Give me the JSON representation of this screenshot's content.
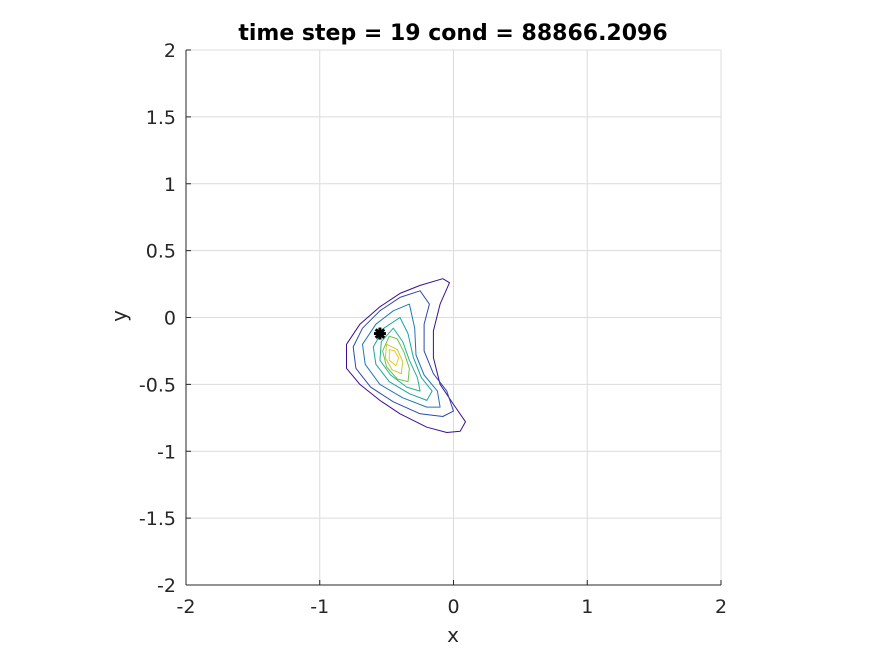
{
  "chart_data": {
    "type": "contour",
    "title": "time step = 19 cond = 88866.2096",
    "xlabel": "x",
    "ylabel": "y",
    "xlim": [
      -2,
      2
    ],
    "ylim": [
      -2,
      2
    ],
    "xticks": [
      -2,
      -1,
      0,
      1,
      2
    ],
    "yticks": [
      -2,
      -1.5,
      -1,
      -0.5,
      0,
      0.5,
      1,
      1.5,
      2
    ],
    "xtick_labels": [
      "-2",
      "-1",
      "0",
      "1",
      "2"
    ],
    "ytick_labels": [
      "-2",
      "-1.5",
      "-1",
      "-0.5",
      "0",
      "0.5",
      "1",
      "1.5",
      "2"
    ],
    "grid": true,
    "colormap": [
      "#3b0f8f",
      "#2c4aa8",
      "#1f77b4",
      "#1aa3a3",
      "#21b38f",
      "#6cc24a",
      "#c8c83a",
      "#f0c820"
    ],
    "contour_levels": [
      {
        "color": "#3b0f8f",
        "points": [
          [
            -0.08,
            0.29
          ],
          [
            -0.25,
            0.24
          ],
          [
            -0.4,
            0.18
          ],
          [
            -0.55,
            0.08
          ],
          [
            -0.7,
            -0.05
          ],
          [
            -0.8,
            -0.2
          ],
          [
            -0.8,
            -0.38
          ],
          [
            -0.7,
            -0.5
          ],
          [
            -0.55,
            -0.62
          ],
          [
            -0.4,
            -0.72
          ],
          [
            -0.2,
            -0.82
          ],
          [
            -0.05,
            -0.86
          ],
          [
            0.05,
            -0.85
          ],
          [
            0.09,
            -0.78
          ],
          [
            0.0,
            -0.65
          ],
          [
            -0.1,
            -0.5
          ],
          [
            -0.15,
            -0.3
          ],
          [
            -0.15,
            -0.1
          ],
          [
            -0.1,
            0.1
          ],
          [
            -0.03,
            0.26
          ]
        ]
      },
      {
        "color": "#2c4aa8",
        "points": [
          [
            -0.25,
            0.2
          ],
          [
            -0.4,
            0.15
          ],
          [
            -0.55,
            0.05
          ],
          [
            -0.68,
            -0.08
          ],
          [
            -0.75,
            -0.22
          ],
          [
            -0.73,
            -0.38
          ],
          [
            -0.62,
            -0.52
          ],
          [
            -0.45,
            -0.63
          ],
          [
            -0.25,
            -0.72
          ],
          [
            -0.08,
            -0.74
          ],
          [
            0.0,
            -0.7
          ],
          [
            -0.05,
            -0.55
          ],
          [
            -0.15,
            -0.42
          ],
          [
            -0.22,
            -0.25
          ],
          [
            -0.22,
            -0.05
          ],
          [
            -0.18,
            0.1
          ]
        ]
      },
      {
        "color": "#1f77b4",
        "points": [
          [
            -0.33,
            0.1
          ],
          [
            -0.45,
            0.05
          ],
          [
            -0.58,
            -0.05
          ],
          [
            -0.68,
            -0.2
          ],
          [
            -0.66,
            -0.35
          ],
          [
            -0.55,
            -0.5
          ],
          [
            -0.38,
            -0.6
          ],
          [
            -0.2,
            -0.67
          ],
          [
            -0.1,
            -0.67
          ],
          [
            -0.12,
            -0.55
          ],
          [
            -0.22,
            -0.43
          ],
          [
            -0.28,
            -0.28
          ],
          [
            -0.29,
            -0.08
          ]
        ]
      },
      {
        "color": "#1aa3a3",
        "points": [
          [
            -0.4,
            0.0
          ],
          [
            -0.52,
            -0.08
          ],
          [
            -0.6,
            -0.22
          ],
          [
            -0.58,
            -0.35
          ],
          [
            -0.48,
            -0.48
          ],
          [
            -0.33,
            -0.57
          ],
          [
            -0.2,
            -0.62
          ],
          [
            -0.16,
            -0.55
          ],
          [
            -0.24,
            -0.45
          ],
          [
            -0.3,
            -0.3
          ],
          [
            -0.34,
            -0.12
          ]
        ]
      },
      {
        "color": "#21b38f",
        "points": [
          [
            -0.45,
            -0.08
          ],
          [
            -0.54,
            -0.18
          ],
          [
            -0.55,
            -0.32
          ],
          [
            -0.47,
            -0.43
          ],
          [
            -0.35,
            -0.52
          ],
          [
            -0.25,
            -0.55
          ],
          [
            -0.27,
            -0.45
          ],
          [
            -0.33,
            -0.32
          ],
          [
            -0.38,
            -0.18
          ]
        ]
      },
      {
        "color": "#6cc24a",
        "points": [
          [
            -0.48,
            -0.14
          ],
          [
            -0.53,
            -0.25
          ],
          [
            -0.5,
            -0.37
          ],
          [
            -0.42,
            -0.46
          ],
          [
            -0.34,
            -0.48
          ],
          [
            -0.33,
            -0.38
          ],
          [
            -0.37,
            -0.26
          ],
          [
            -0.42,
            -0.16
          ]
        ]
      },
      {
        "color": "#c8c83a",
        "points": [
          [
            -0.5,
            -0.2
          ],
          [
            -0.51,
            -0.3
          ],
          [
            -0.46,
            -0.39
          ],
          [
            -0.39,
            -0.42
          ],
          [
            -0.38,
            -0.33
          ],
          [
            -0.42,
            -0.24
          ]
        ]
      },
      {
        "color": "#f0c820",
        "points": [
          [
            -0.48,
            -0.24
          ],
          [
            -0.48,
            -0.32
          ],
          [
            -0.43,
            -0.36
          ],
          [
            -0.41,
            -0.3
          ],
          [
            -0.44,
            -0.25
          ]
        ]
      }
    ],
    "marker": {
      "x": -0.55,
      "y": -0.12,
      "color": "#000000",
      "shape": "asterisk"
    }
  }
}
